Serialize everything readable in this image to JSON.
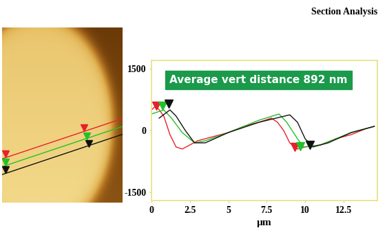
{
  "chart_data": {
    "type": "line",
    "title": "Section Analysis",
    "x_label": "µm",
    "annotation": "Average vert distance 892 nm",
    "xlim": [
      0,
      14.7
    ],
    "ylim": [
      -1700,
      1700
    ],
    "xticks": [
      0,
      2.5,
      5,
      7.5,
      10,
      12.5
    ],
    "yticks": [
      -1500,
      0,
      1500
    ],
    "grid": false,
    "series": [
      {
        "color": "#e8202a",
        "x": [
          0,
          0.3,
          0.8,
          1.2,
          1.6,
          2.0,
          2.5,
          3.0,
          4.0,
          5.0,
          6.0,
          7.0,
          7.8,
          8.2,
          8.6,
          9.0,
          9.5,
          10.0,
          11.0,
          12.0,
          13.0,
          14.0,
          14.5
        ],
        "values": [
          500,
          600,
          350,
          -100,
          -400,
          -450,
          -350,
          -250,
          -150,
          -50,
          100,
          200,
          300,
          200,
          0,
          -300,
          -450,
          -400,
          -350,
          -200,
          -100,
          50,
          100
        ],
        "cursors": {
          "x": [
            0.3,
            9.3
          ],
          "y": [
            600,
            -400
          ]
        }
      },
      {
        "color": "#22c02a",
        "x": [
          0,
          0.8,
          1.3,
          2.0,
          2.8,
          3.5,
          5.0,
          7.0,
          8.3,
          8.8,
          9.5,
          9.9,
          11.0,
          12.0,
          13.0,
          14.5
        ],
        "values": [
          400,
          500,
          300,
          -50,
          -300,
          -250,
          -50,
          250,
          400,
          200,
          -200,
          -400,
          -350,
          -200,
          -50,
          100
        ],
        "cursors": {
          "x": [
            0.7,
            9.7
          ],
          "y": [
            600,
            -380
          ]
        }
      },
      {
        "color": "#111111",
        "x": [
          0.5,
          1.2,
          1.6,
          2.2,
          2.8,
          3.5,
          5.0,
          7.0,
          9.0,
          9.5,
          10.0,
          10.5,
          11.5,
          13.0,
          14.5
        ],
        "values": [
          300,
          500,
          350,
          0,
          -300,
          -300,
          -50,
          200,
          380,
          200,
          -200,
          -400,
          -300,
          -50,
          100
        ],
        "cursors": {
          "x": [
            1.1,
            10.3
          ],
          "y": [
            650,
            -350
          ]
        }
      }
    ]
  }
}
